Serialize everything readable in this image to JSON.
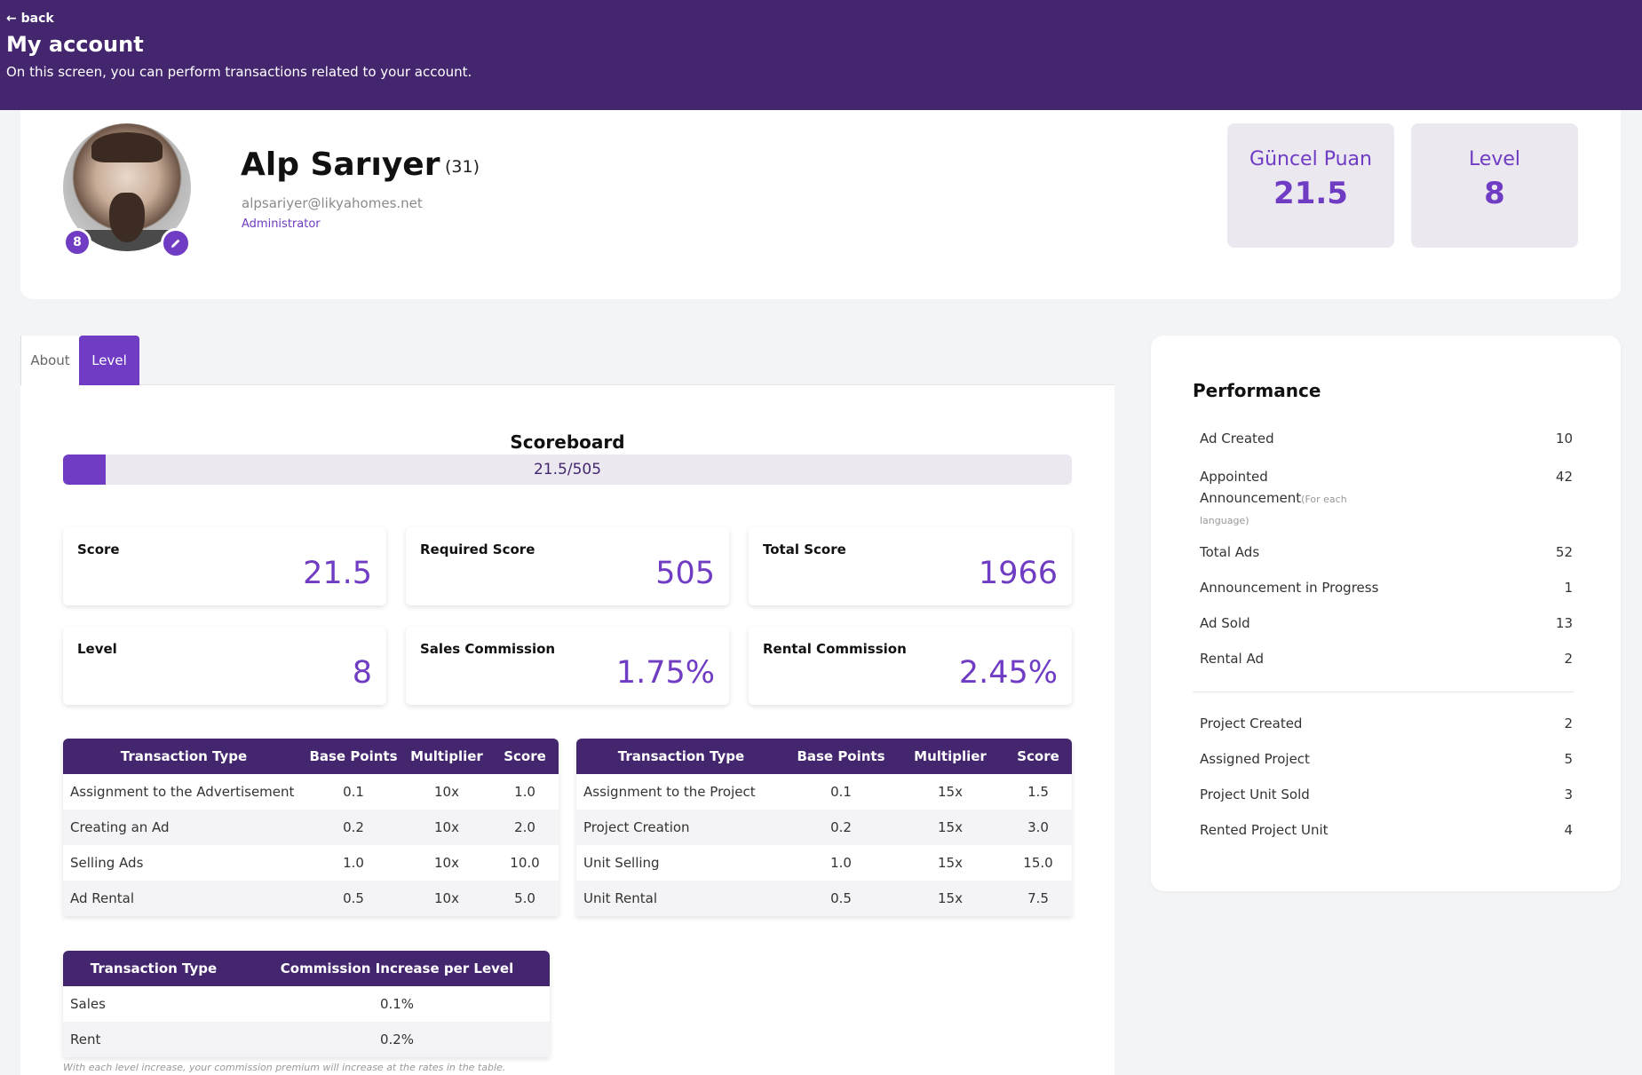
{
  "header": {
    "back_label": "← back",
    "title": "My account",
    "subtitle": "On this screen, you can perform transactions related to your account."
  },
  "profile": {
    "name": "Alp Sarıyer",
    "age": "(31)",
    "email": "alpsariyer@likyahomes.net",
    "role": "Administrator",
    "level_badge": "8",
    "edit_icon": "pencil-icon",
    "current_points_label": "Güncel Puan",
    "current_points_value": "21.5",
    "level_label": "Level",
    "level_value": "8"
  },
  "tabs": [
    {
      "label": "About",
      "active": false
    },
    {
      "label": "Level",
      "active": true
    }
  ],
  "scoreboard": {
    "title": "Scoreboard",
    "progress_text": "21.5/505",
    "progress_fraction": 0.0426
  },
  "metrics": [
    {
      "label": "Score",
      "value": "21.5"
    },
    {
      "label": "Required Score",
      "value": "505"
    },
    {
      "label": "Total Score",
      "value": "1966"
    },
    {
      "label": "Level",
      "value": "8"
    },
    {
      "label": "Sales Commission",
      "value": "1.75%"
    },
    {
      "label": "Rental Commission",
      "value": "2.45%"
    }
  ],
  "ad_table": {
    "headers": [
      "Transaction Type",
      "Base Points",
      "Multiplier",
      "Score"
    ],
    "rows": [
      [
        "Assignment to the Advertisement",
        "0.1",
        "10x",
        "1.0"
      ],
      [
        "Creating an Ad",
        "0.2",
        "10x",
        "2.0"
      ],
      [
        "Selling Ads",
        "1.0",
        "10x",
        "10.0"
      ],
      [
        "Ad Rental",
        "0.5",
        "10x",
        "5.0"
      ]
    ]
  },
  "project_table": {
    "headers": [
      "Transaction Type",
      "Base Points",
      "Multiplier",
      "Score"
    ],
    "rows": [
      [
        "Assignment to the Project",
        "0.1",
        "15x",
        "1.5"
      ],
      [
        "Project Creation",
        "0.2",
        "15x",
        "3.0"
      ],
      [
        "Unit Selling",
        "1.0",
        "15x",
        "15.0"
      ],
      [
        "Unit Rental",
        "0.5",
        "15x",
        "7.5"
      ]
    ]
  },
  "commission_table": {
    "headers": [
      "Transaction Type",
      "Commission Increase per Level"
    ],
    "rows": [
      [
        "Sales",
        "0.1%"
      ],
      [
        "Rent",
        "0.2%"
      ]
    ],
    "note": "With each level increase, your commission premium will increase at the rates in the table."
  },
  "performance": {
    "title": "Performance",
    "rows": [
      {
        "label": "Ad Created",
        "value": "10"
      },
      {
        "label": "Appointed",
        "label2": "Announcement",
        "small": "(For each",
        "small2": "language)",
        "value": "42"
      },
      {
        "label": "Total Ads",
        "value": "52"
      },
      {
        "label": "Announcement in Progress",
        "value": "1"
      },
      {
        "label": "Ad Sold",
        "value": "13"
      },
      {
        "label": "Rental Ad",
        "value": "2"
      },
      {
        "label": "Project Created",
        "value": "2"
      },
      {
        "label": "Assigned Project",
        "value": "5"
      },
      {
        "label": "Project Unit Sold",
        "value": "3"
      },
      {
        "label": "Rented Project Unit",
        "value": "4"
      }
    ]
  },
  "colors": {
    "header_bg": "#44266f",
    "accent": "#6f3cc3",
    "stat_bg": "#ebe8f0"
  }
}
